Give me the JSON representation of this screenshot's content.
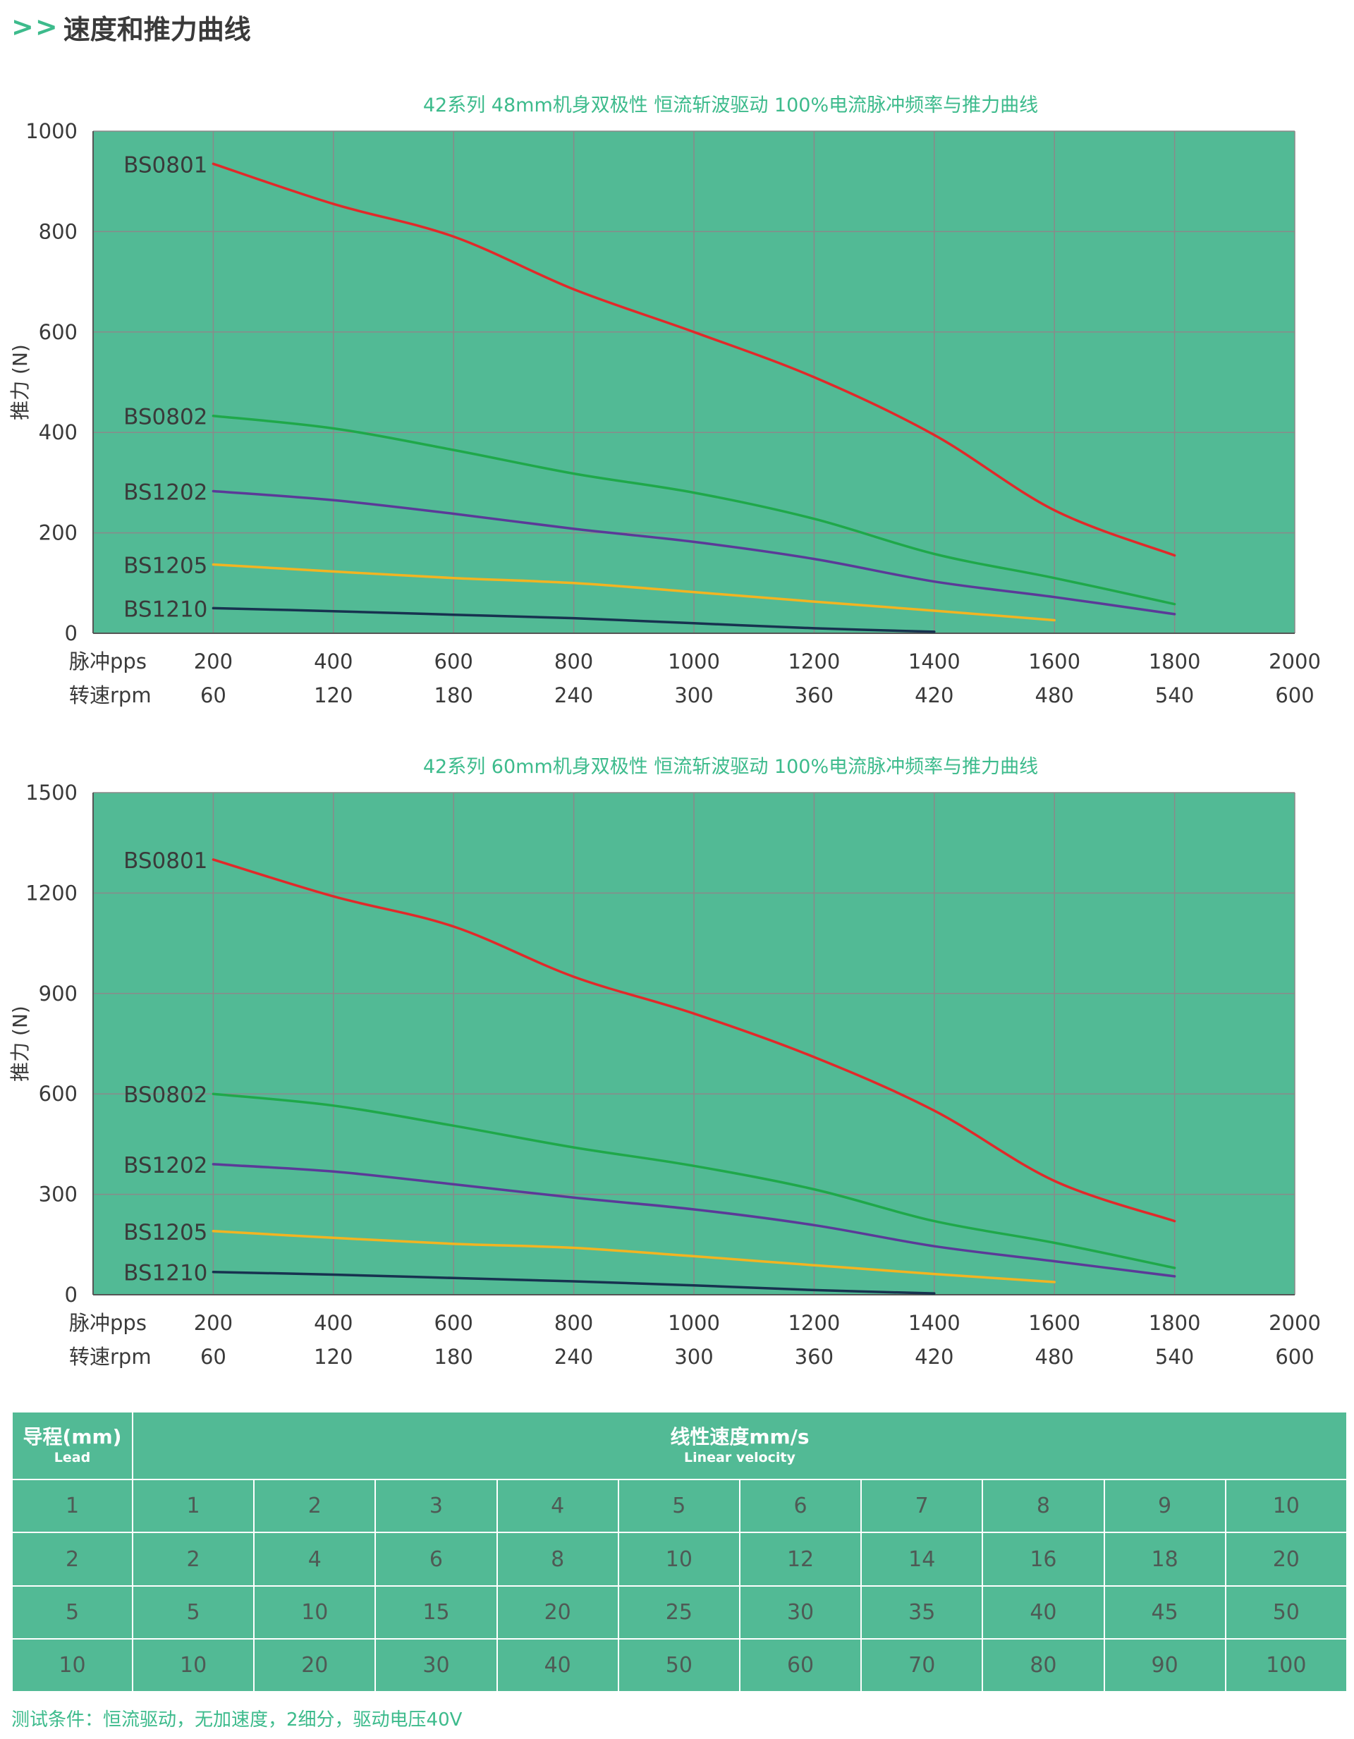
{
  "header": {
    "arrows": ">>",
    "title": "速度和推力曲线"
  },
  "colors": {
    "accent": "#3dbb8c",
    "plot_bg": "#52ba95",
    "grid": "#8a8a8a",
    "BS0801": "#e1292a",
    "BS0802": "#1fa84a",
    "BS1202": "#5b3a98",
    "BS1205": "#f2b422",
    "BS1210": "#17324f"
  },
  "chart_data": [
    {
      "type": "line",
      "title": "42系列 48mm机身双极性 恒流斩波驱动 100%电流脉冲频率与推力曲线",
      "ylabel": "推力 (N)",
      "ylim": [
        0,
        1000
      ],
      "yticks": [
        0,
        200,
        400,
        600,
        800,
        1000
      ],
      "xlim": [
        0,
        2000
      ],
      "x_row_labels": [
        "脉冲pps",
        "转速rpm"
      ],
      "xticks_pps": [
        "200",
        "400",
        "600",
        "800",
        "1000",
        "1200",
        "1400",
        "1600",
        "1800",
        "2000"
      ],
      "xticks_rpm": [
        "60",
        "120",
        "180",
        "240",
        "300",
        "360",
        "420",
        "480",
        "540",
        "600"
      ],
      "grid": true,
      "series": [
        {
          "name": "BS0801",
          "x": [
            200,
            400,
            600,
            800,
            1000,
            1200,
            1400,
            1600,
            1800
          ],
          "y": [
            935,
            855,
            790,
            685,
            600,
            510,
            395,
            245,
            155
          ]
        },
        {
          "name": "BS0802",
          "x": [
            200,
            400,
            600,
            800,
            1000,
            1200,
            1400,
            1600,
            1800
          ],
          "y": [
            433,
            408,
            365,
            318,
            280,
            228,
            158,
            110,
            58
          ]
        },
        {
          "name": "BS1202",
          "x": [
            200,
            400,
            600,
            800,
            1000,
            1200,
            1400,
            1600,
            1800
          ],
          "y": [
            283,
            265,
            238,
            208,
            182,
            148,
            103,
            72,
            38
          ]
        },
        {
          "name": "BS1205",
          "x": [
            200,
            400,
            600,
            800,
            1000,
            1200,
            1400,
            1600
          ],
          "y": [
            137,
            123,
            110,
            100,
            82,
            63,
            45,
            26
          ]
        },
        {
          "name": "BS1210",
          "x": [
            200,
            400,
            600,
            800,
            1000,
            1200,
            1400
          ],
          "y": [
            50,
            44,
            37,
            30,
            20,
            10,
            3
          ]
        }
      ]
    },
    {
      "type": "line",
      "title": "42系列 60mm机身双极性 恒流斩波驱动 100%电流脉冲频率与推力曲线",
      "ylabel": "推力 (N)",
      "ylim": [
        0,
        1500
      ],
      "yticks": [
        0,
        300,
        600,
        900,
        1200,
        1500
      ],
      "xlim": [
        0,
        2000
      ],
      "x_row_labels": [
        "脉冲pps",
        "转速rpm"
      ],
      "xticks_pps": [
        "200",
        "400",
        "600",
        "800",
        "1000",
        "1200",
        "1400",
        "1600",
        "1800",
        "2000"
      ],
      "xticks_rpm": [
        "60",
        "120",
        "180",
        "240",
        "300",
        "360",
        "420",
        "480",
        "540",
        "600"
      ],
      "grid": true,
      "series": [
        {
          "name": "BS0801",
          "x": [
            200,
            400,
            600,
            800,
            1000,
            1200,
            1400,
            1600,
            1800
          ],
          "y": [
            1300,
            1190,
            1100,
            950,
            840,
            710,
            550,
            340,
            220
          ]
        },
        {
          "name": "BS0802",
          "x": [
            200,
            400,
            600,
            800,
            1000,
            1200,
            1400,
            1600,
            1800
          ],
          "y": [
            600,
            565,
            505,
            440,
            385,
            315,
            220,
            155,
            80
          ]
        },
        {
          "name": "BS1202",
          "x": [
            200,
            400,
            600,
            800,
            1000,
            1200,
            1400,
            1600,
            1800
          ],
          "y": [
            390,
            368,
            330,
            290,
            255,
            208,
            145,
            100,
            55
          ]
        },
        {
          "name": "BS1205",
          "x": [
            200,
            400,
            600,
            800,
            1000,
            1200,
            1400,
            1600
          ],
          "y": [
            190,
            170,
            152,
            140,
            115,
            88,
            62,
            38
          ]
        },
        {
          "name": "BS1210",
          "x": [
            200,
            400,
            600,
            800,
            1000,
            1200,
            1400
          ],
          "y": [
            68,
            60,
            50,
            40,
            28,
            14,
            4
          ]
        }
      ]
    }
  ],
  "table": {
    "lead_label": "导程(mm)",
    "lead_sub": "Lead",
    "velocity_label": "线性速度mm/s",
    "velocity_sub": "Linear velocity",
    "rows": [
      {
        "lead": "1",
        "values": [
          "1",
          "2",
          "3",
          "4",
          "5",
          "6",
          "7",
          "8",
          "9",
          "10"
        ]
      },
      {
        "lead": "2",
        "values": [
          "2",
          "4",
          "6",
          "8",
          "10",
          "12",
          "14",
          "16",
          "18",
          "20"
        ]
      },
      {
        "lead": "5",
        "values": [
          "5",
          "10",
          "15",
          "20",
          "25",
          "30",
          "35",
          "40",
          "45",
          "50"
        ]
      },
      {
        "lead": "10",
        "values": [
          "10",
          "20",
          "30",
          "40",
          "50",
          "60",
          "70",
          "80",
          "90",
          "100"
        ]
      }
    ]
  },
  "footnote": "测试条件：恒流驱动，无加速度，2细分，驱动电压40V"
}
